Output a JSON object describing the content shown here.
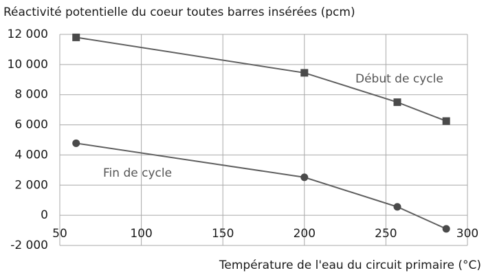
{
  "chart_data": {
    "type": "line",
    "title": "Réactivité potentielle du coeur toutes barres insérées (pcm)",
    "x_label": "Température de l'eau du circuit primaire (°C)",
    "x": [
      60,
      200,
      257,
      287
    ],
    "series": [
      {
        "name": "Début de cycle",
        "color": "#5f5f5f",
        "marker": "square",
        "values": [
          11800,
          9450,
          7500,
          6250
        ]
      },
      {
        "name": "Fin de cycle",
        "color": "#5f5f5f",
        "marker": "circle",
        "values": [
          4780,
          2520,
          560,
          -900
        ]
      }
    ],
    "xlim": [
      50,
      300
    ],
    "xticks": [
      50,
      100,
      150,
      200,
      250,
      300
    ],
    "ylim": [
      -2000,
      12000
    ],
    "yticks": [
      {
        "value": -2000,
        "label": "-2 000"
      },
      0,
      {
        "value": 2000,
        "label": "2 000"
      },
      {
        "value": 4000,
        "label": "4 000"
      },
      {
        "value": 6000,
        "label": "6 000"
      },
      {
        "value": 8000,
        "label": "8 000"
      },
      {
        "value": 10000,
        "label": "10 000"
      },
      {
        "value": 12000,
        "label": "12 000"
      }
    ],
    "grid": true
  }
}
